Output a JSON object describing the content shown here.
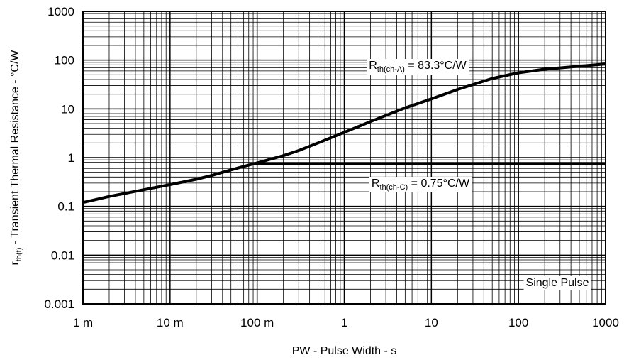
{
  "chart_data": {
    "type": "line",
    "x_scale": "log",
    "y_scale": "log",
    "xlim": [
      0.001,
      1000
    ],
    "ylim": [
      0.001,
      1000
    ],
    "grid": true,
    "xlabel": "PW - Pulse Width - s",
    "ylabel_main": "r",
    "ylabel_sub": "th(t)",
    "ylabel_rest": " - Transient Thermal Resistance - °C/W",
    "x_tick_values": [
      0.001,
      0.01,
      0.1,
      1,
      10,
      100,
      1000
    ],
    "x_tick_labels": [
      "1 m",
      "10 m",
      "100 m",
      "1",
      "10",
      "100",
      "1000"
    ],
    "y_tick_values": [
      0.001,
      0.01,
      0.1,
      1,
      10,
      100,
      1000
    ],
    "y_tick_labels": [
      "0.001",
      "0.01",
      "0.1",
      "1",
      "10",
      "100",
      "1000"
    ],
    "series": [
      {
        "x": [
          0.001,
          0.002,
          0.005,
          0.01,
          0.02,
          0.03,
          0.05,
          0.07,
          0.1,
          0.2,
          0.3,
          0.5,
          1,
          2,
          5,
          10,
          20,
          50,
          100,
          200,
          500,
          1000
        ],
        "y": [
          0.12,
          0.16,
          0.22,
          0.28,
          0.36,
          0.43,
          0.56,
          0.66,
          0.78,
          1.1,
          1.4,
          2.0,
          3.3,
          5.5,
          10.5,
          16,
          25,
          42,
          55,
          65,
          75,
          83.3
        ]
      },
      {
        "x": [
          0.09,
          1000
        ],
        "y": [
          0.75,
          0.75
        ]
      }
    ],
    "annotations": [
      {
        "main": "R",
        "sub": "th(ch-A)",
        "rest": " = 83.3°C/W"
      },
      {
        "main": "R",
        "sub": "th(ch-C)",
        "rest": " = 0.75°C/W"
      },
      {
        "text": "Single Pulse"
      }
    ]
  }
}
